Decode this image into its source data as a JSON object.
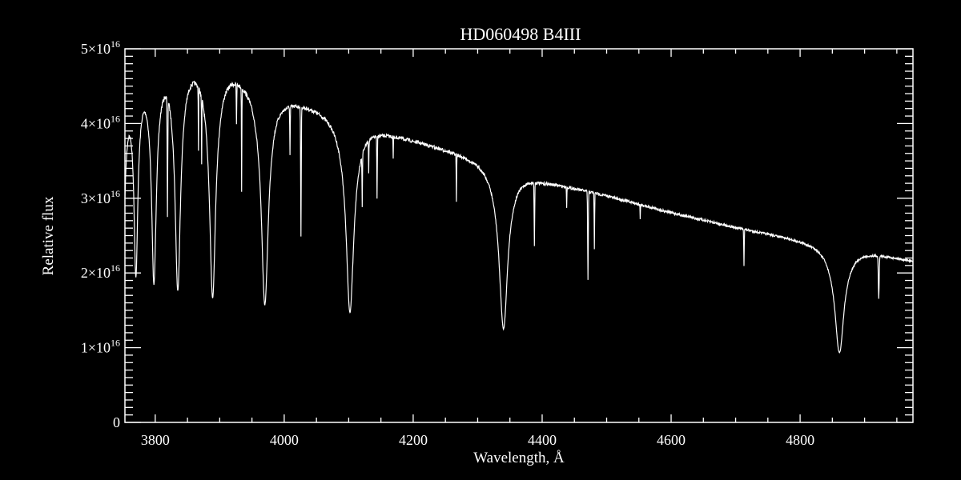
{
  "chart_data": {
    "type": "line",
    "title": "HD060498   B4III",
    "xlabel": "Wavelength, Å",
    "ylabel": "Relative flux",
    "xlim": [
      3753,
      4975
    ],
    "ylim": [
      0,
      5e+16
    ],
    "x_ticks": [
      3800,
      4000,
      4200,
      4400,
      4600,
      4800
    ],
    "x_minor_step": 50,
    "y_ticks": [
      {
        "value": 0,
        "label": "0"
      },
      {
        "value": 1e+16,
        "mantissa": "1",
        "base": "×10",
        "exp": "16"
      },
      {
        "value": 2e+16,
        "mantissa": "2",
        "base": "×10",
        "exp": "16"
      },
      {
        "value": 3e+16,
        "mantissa": "3",
        "base": "×10",
        "exp": "16"
      },
      {
        "value": 4e+16,
        "mantissa": "4",
        "base": "×10",
        "exp": "16"
      },
      {
        "value": 5e+16,
        "mantissa": "5",
        "base": "×10",
        "exp": "16"
      }
    ],
    "y_minor_step": 1000000000000000.0,
    "grid": false,
    "line_color": "#ffffff",
    "background": "#000000",
    "flux_unit_scale": 1e+16,
    "continuum": [
      [
        3753,
        4.6
      ],
      [
        3780,
        4.8
      ],
      [
        3820,
        4.95
      ],
      [
        3860,
        4.95
      ],
      [
        3920,
        4.8
      ],
      [
        3960,
        4.6
      ],
      [
        4000,
        4.42
      ],
      [
        4050,
        4.28
      ],
      [
        4100,
        4.1
      ],
      [
        4150,
        3.95
      ],
      [
        4200,
        3.82
      ],
      [
        4300,
        3.57
      ],
      [
        4360,
        3.4
      ],
      [
        4400,
        3.27
      ],
      [
        4500,
        3.06
      ],
      [
        4600,
        2.83
      ],
      [
        4700,
        2.63
      ],
      [
        4780,
        2.5
      ],
      [
        4830,
        2.42
      ],
      [
        4900,
        2.32
      ],
      [
        4975,
        2.18
      ]
    ],
    "absorption_lines": [
      {
        "center": 3750,
        "min_flux": 2.2,
        "width": 5
      },
      {
        "center": 3770,
        "min_flux": 2.05,
        "width": 5
      },
      {
        "center": 3798,
        "min_flux": 1.93,
        "width": 6
      },
      {
        "center": 3819,
        "min_flux": 3.13,
        "width": 1.2
      },
      {
        "center": 3835,
        "min_flux": 1.82,
        "width": 7
      },
      {
        "center": 3867,
        "min_flux": 4.0,
        "width": 0.8
      },
      {
        "center": 3872,
        "min_flux": 3.9,
        "width": 0.8
      },
      {
        "center": 3889,
        "min_flux": 1.71,
        "width": 8
      },
      {
        "center": 3926,
        "min_flux": 4.2,
        "width": 1
      },
      {
        "center": 3934,
        "min_flux": 3.28,
        "width": 0.8
      },
      {
        "center": 3970,
        "min_flux": 1.6,
        "width": 9
      },
      {
        "center": 4009,
        "min_flux": 3.72,
        "width": 1
      },
      {
        "center": 4026,
        "min_flux": 2.58,
        "width": 1.3
      },
      {
        "center": 4102,
        "min_flux": 1.49,
        "width": 10
      },
      {
        "center": 4121,
        "min_flux": 3.25,
        "width": 1
      },
      {
        "center": 4131,
        "min_flux": 3.55,
        "width": 0.8
      },
      {
        "center": 4144,
        "min_flux": 3.1,
        "width": 1
      },
      {
        "center": 4169,
        "min_flux": 3.6,
        "width": 0.8
      },
      {
        "center": 4267,
        "min_flux": 3.0,
        "width": 0.9
      },
      {
        "center": 4340,
        "min_flux": 1.26,
        "width": 11
      },
      {
        "center": 4388,
        "min_flux": 2.44,
        "width": 1.2
      },
      {
        "center": 4438,
        "min_flux": 2.92,
        "width": 0.9
      },
      {
        "center": 4471,
        "min_flux": 1.93,
        "width": 1.4
      },
      {
        "center": 4481,
        "min_flux": 2.33,
        "width": 1
      },
      {
        "center": 4552,
        "min_flux": 2.75,
        "width": 0.8
      },
      {
        "center": 4713,
        "min_flux": 2.12,
        "width": 1
      },
      {
        "center": 4861,
        "min_flux": 0.94,
        "width": 12
      },
      {
        "center": 4922,
        "min_flux": 1.69,
        "width": 1.8
      }
    ]
  }
}
